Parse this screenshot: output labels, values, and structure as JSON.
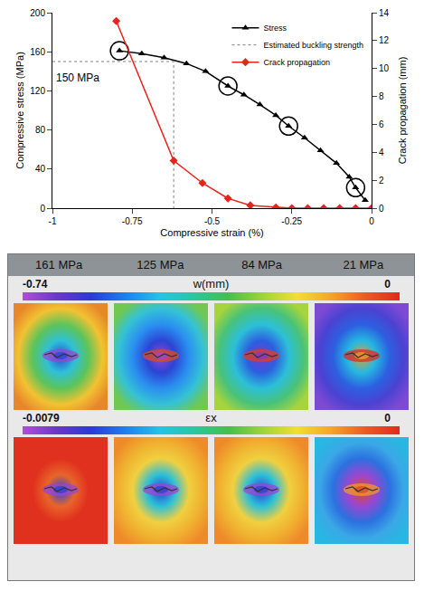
{
  "chart_data": {
    "type": "line",
    "xlabel": "Compressive strain (%)",
    "ylabel": "Compressive stress (MPa)",
    "y2label": "Crack propagation (mm)",
    "xlim": [
      -1,
      0
    ],
    "xticks": [
      -1,
      -0.75,
      -0.5,
      -0.25,
      0
    ],
    "ylim": [
      0,
      200
    ],
    "yticks": [
      0,
      40,
      80,
      120,
      160,
      200
    ],
    "y2lim": [
      0,
      14
    ],
    "y2ticks": [
      0,
      2,
      4,
      6,
      8,
      10,
      12,
      14
    ],
    "grid": false,
    "legend": "top-right",
    "series": [
      {
        "name": "Stress",
        "color": "#000000",
        "marker": "triangle-up",
        "line_style": "solid",
        "x": [
          -0.79,
          -0.72,
          -0.65,
          -0.58,
          -0.52,
          -0.45,
          -0.4,
          -0.35,
          -0.3,
          -0.26,
          -0.21,
          -0.16,
          -0.11,
          -0.07,
          -0.05,
          -0.02
        ],
        "values": [
          161,
          158,
          154,
          148,
          140,
          125,
          116,
          106,
          95,
          84,
          72,
          59,
          46,
          32,
          21,
          8
        ]
      },
      {
        "name": "Estimated buckling strength",
        "color": "#808080",
        "marker": "none",
        "line_style": "dot",
        "x": [
          -1,
          -0.62,
          -0.62
        ],
        "values": [
          150,
          150,
          0
        ]
      },
      {
        "name": "Crack propagation",
        "color": "#e8231c",
        "marker": "diamond",
        "line_style": "solid",
        "axis": "y2",
        "x": [
          -0.8,
          -0.62,
          -0.53,
          -0.45,
          -0.38,
          -0.3,
          -0.25,
          -0.2,
          -0.15,
          -0.1,
          -0.05,
          0
        ],
        "values": [
          13.4,
          3.4,
          1.8,
          0.7,
          0.2,
          0.05,
          0,
          0,
          0,
          0,
          0,
          0
        ]
      }
    ],
    "highlights": {
      "x": [
        -0.79,
        -0.45,
        -0.26,
        -0.05
      ],
      "values": [
        161,
        125,
        84,
        21
      ]
    },
    "annotations": [
      {
        "text": "150 MPa",
        "x": -0.92,
        "y": 142
      }
    ]
  },
  "panels": {
    "stress_labels": [
      "161 MPa",
      "125 MPa",
      "84 MPa",
      "21 MPa"
    ],
    "maps": [
      {
        "label": "w(mm)",
        "min": -0.74,
        "max": 0
      },
      {
        "label": "εx",
        "min": -0.0079,
        "max": 0
      }
    ]
  }
}
